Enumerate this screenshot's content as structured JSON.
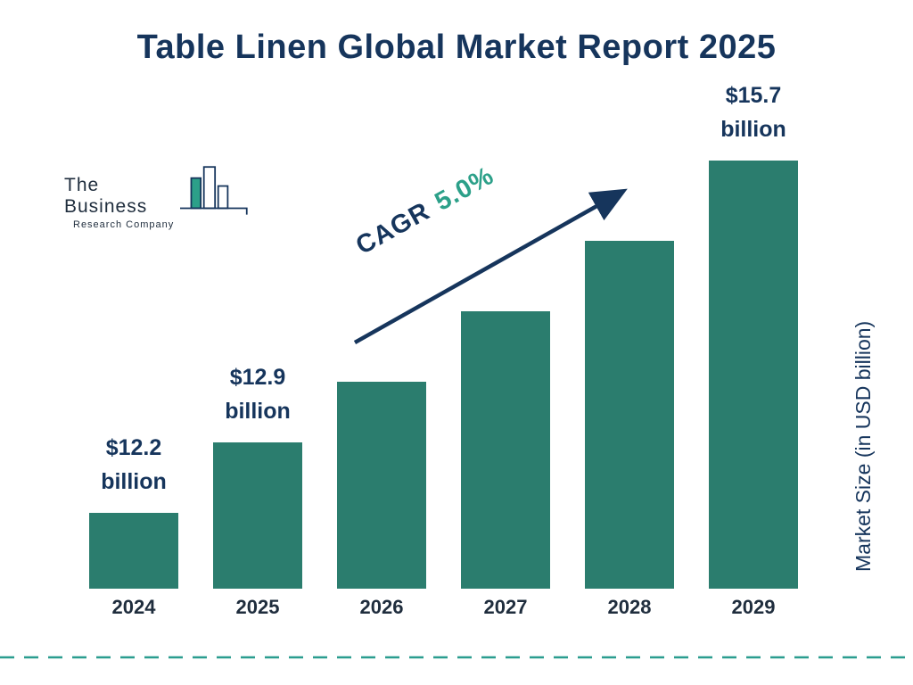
{
  "title": "Table Linen Global Market Report 2025",
  "logo": {
    "line1": "The Business",
    "line2": "Research Company"
  },
  "cagr": {
    "label": "CAGR",
    "value": "5.0%"
  },
  "colors": {
    "bar": "#2B7D6E",
    "navy": "#16355C",
    "cagr_green": "#2CA089",
    "dashed_line": "#2A9D8F"
  },
  "chart_data": {
    "type": "bar",
    "title": "Table Linen Global Market Report 2025",
    "categories": [
      "2024",
      "2025",
      "2026",
      "2027",
      "2028",
      "2029"
    ],
    "values": [
      12.2,
      12.9,
      13.5,
      14.2,
      14.9,
      15.7
    ],
    "unit": "USD billion",
    "ylabel": "Market Size (in USD billion)",
    "xlabel": "",
    "grid": false,
    "legend": false,
    "bar_color": "#2B7D6E",
    "annotations": [
      {
        "index": 0,
        "lines": [
          "$12.2",
          "billion"
        ]
      },
      {
        "index": 1,
        "lines": [
          "$12.9",
          "billion"
        ]
      },
      {
        "index": 5,
        "lines": [
          "$15.7",
          "billion"
        ]
      }
    ],
    "cagr_annotation": "CAGR 5.0%"
  }
}
